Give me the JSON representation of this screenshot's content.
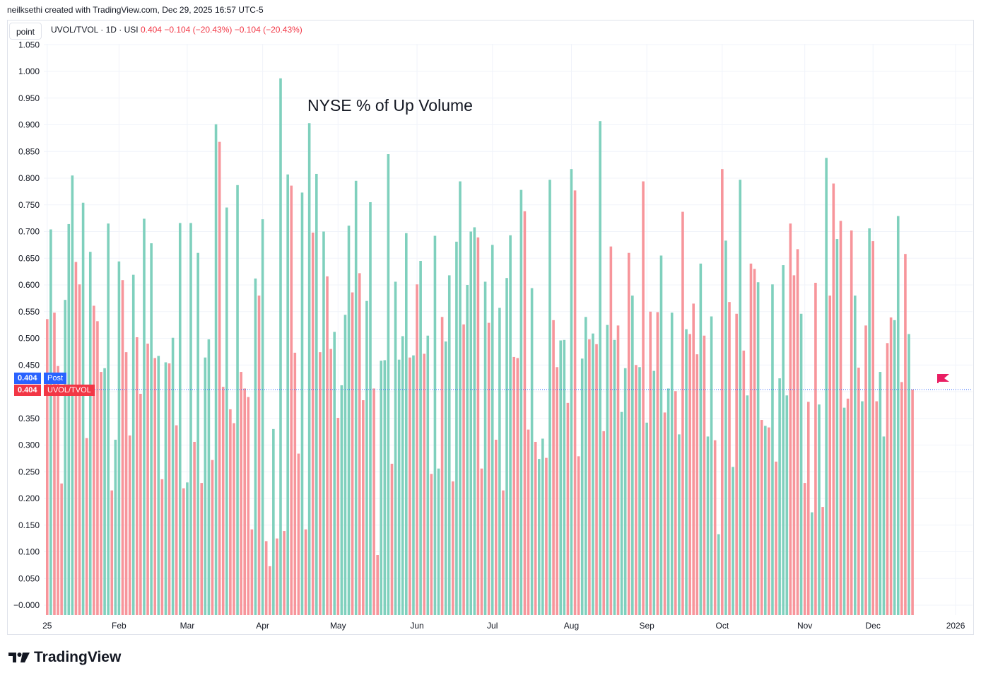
{
  "attribution": "neilksethi created with TradingView.com, Dec 29, 2025 16:57 UTC-5",
  "toolbar": {
    "point_label": "point"
  },
  "legend": {
    "symbol": "UVOL/TVOL · 1D · USI",
    "value": "0.404",
    "change1": "−0.104 (−20.43%)",
    "change2": "−0.104 (−20.43%)"
  },
  "price_tags": {
    "post_value": "0.404",
    "post_label": "Post",
    "last_value": "0.404",
    "last_label": "UVOL/TVOL"
  },
  "brand": {
    "name": "TradingView"
  },
  "colors": {
    "up": "#7fd0bd",
    "down": "#f7959b",
    "accent_blue": "#2962ff",
    "accent_red": "#f23645",
    "flag": "#e91e63"
  },
  "chart_data": {
    "type": "bar",
    "title": "NYSE % of Up Volume",
    "xlabel": "",
    "ylabel": "",
    "ylim": [
      -0.02,
      1.06
    ],
    "y_ticks": [
      "1.050",
      "1.000",
      "0.950",
      "0.900",
      "0.850",
      "0.800",
      "0.750",
      "0.700",
      "0.650",
      "0.600",
      "0.550",
      "0.500",
      "0.450",
      "0.400",
      "0.350",
      "0.300",
      "0.250",
      "0.200",
      "0.150",
      "0.100",
      "0.050",
      "−0.000"
    ],
    "x_ticks": [
      {
        "label": "25",
        "index": 0
      },
      {
        "label": "Feb",
        "index": 20
      },
      {
        "label": "Mar",
        "index": 39
      },
      {
        "label": "Apr",
        "index": 60
      },
      {
        "label": "May",
        "index": 81
      },
      {
        "label": "Jun",
        "index": 103
      },
      {
        "label": "Jul",
        "index": 124
      },
      {
        "label": "Aug",
        "index": 146
      },
      {
        "label": "Sep",
        "index": 167
      },
      {
        "label": "Oct",
        "index": 188
      },
      {
        "label": "Nov",
        "index": 211
      },
      {
        "label": "Dec",
        "index": 230
      },
      {
        "label": "2026",
        "index": 253
      }
    ],
    "grid": true,
    "last_value": 0.404,
    "series": [
      {
        "values": [
          0.536,
          0.704,
          0.548,
          0.448,
          0.228,
          0.572,
          0.714,
          0.805,
          0.643,
          0.601,
          0.754,
          0.313,
          0.662,
          0.561,
          0.532,
          0.437,
          0.444,
          0.715,
          0.215,
          0.31,
          0.644,
          0.609,
          0.474,
          0.318,
          0.619,
          0.502,
          0.396,
          0.724,
          0.49,
          0.678,
          0.463,
          0.467,
          0.236,
          0.455,
          0.453,
          0.501,
          0.337,
          0.716,
          0.219,
          0.23,
          0.716,
          0.306,
          0.66,
          0.229,
          0.464,
          0.498,
          0.272,
          0.901,
          0.868,
          0.409,
          0.745,
          0.367,
          0.341,
          0.787,
          0.437,
          0.406,
          0.39,
          0.142,
          0.612,
          0.58,
          0.723,
          0.12,
          0.073,
          0.33,
          0.125,
          0.987,
          0.139,
          0.807,
          0.786,
          0.473,
          0.284,
          0.773,
          0.142,
          0.903,
          0.698,
          0.808,
          0.474,
          0.7,
          0.616,
          0.48,
          0.512,
          0.351,
          0.412,
          0.544,
          0.711,
          0.586,
          0.795,
          0.622,
          0.384,
          0.57,
          0.755,
          0.406,
          0.094,
          0.458,
          0.459,
          0.845,
          0.265,
          0.606,
          0.46,
          0.504,
          0.697,
          0.464,
          0.468,
          0.601,
          0.645,
          0.471,
          0.505,
          0.246,
          0.692,
          0.256,
          0.54,
          0.494,
          0.618,
          0.232,
          0.681,
          0.794,
          0.526,
          0.6,
          0.7,
          0.708,
          0.689,
          0.256,
          0.606,
          0.529,
          0.675,
          0.31,
          0.557,
          0.215,
          0.613,
          0.693,
          0.465,
          0.463,
          0.778,
          0.738,
          0.329,
          0.594,
          0.306,
          0.274,
          0.312,
          0.276,
          0.797,
          0.534,
          0.446,
          0.496,
          0.497,
          0.379,
          0.817,
          0.777,
          0.279,
          0.462,
          0.54,
          0.498,
          0.509,
          0.489,
          0.907,
          0.326,
          0.525,
          0.672,
          0.497,
          0.524,
          0.362,
          0.444,
          0.66,
          0.58,
          0.45,
          0.446,
          0.794,
          0.342,
          0.55,
          0.439,
          0.549,
          0.655,
          0.361,
          0.406,
          0.548,
          0.401,
          0.32,
          0.737,
          0.517,
          0.508,
          0.565,
          0.47,
          0.64,
          0.505,
          0.316,
          0.541,
          0.309,
          0.133,
          0.817,
          0.683,
          0.568,
          0.259,
          0.546,
          0.797,
          0.477,
          0.393,
          0.64,
          0.63,
          0.605,
          0.347,
          0.336,
          0.333,
          0.601,
          0.269,
          0.425,
          0.637,
          0.393,
          0.715,
          0.618,
          0.667,
          0.546,
          0.229,
          0.381,
          0.174,
          0.604,
          0.376,
          0.184,
          0.838,
          0.58,
          0.79,
          0.686,
          0.72,
          0.37,
          0.387,
          0.702,
          0.58,
          0.445,
          0.382,
          0.524,
          0.706,
          0.682,
          0.382,
          0.437,
          0.316,
          0.491,
          0.539,
          0.534,
          0.729,
          0.418,
          0.658,
          0.508,
          0.404
        ],
        "colors": [
          "d",
          "u",
          "d",
          "d",
          "d",
          "u",
          "u",
          "u",
          "d",
          "d",
          "u",
          "d",
          "u",
          "d",
          "d",
          "d",
          "u",
          "u",
          "d",
          "u",
          "u",
          "d",
          "d",
          "d",
          "u",
          "d",
          "d",
          "u",
          "d",
          "u",
          "d",
          "u",
          "d",
          "u",
          "d",
          "u",
          "d",
          "u",
          "d",
          "u",
          "u",
          "d",
          "u",
          "d",
          "u",
          "u",
          "d",
          "u",
          "d",
          "d",
          "u",
          "d",
          "d",
          "u",
          "d",
          "d",
          "d",
          "d",
          "u",
          "d",
          "u",
          "d",
          "d",
          "u",
          "d",
          "u",
          "d",
          "u",
          "d",
          "d",
          "d",
          "u",
          "d",
          "u",
          "d",
          "u",
          "d",
          "u",
          "d",
          "d",
          "u",
          "d",
          "u",
          "u",
          "u",
          "d",
          "u",
          "d",
          "d",
          "u",
          "u",
          "d",
          "d",
          "u",
          "u",
          "u",
          "d",
          "u",
          "u",
          "u",
          "u",
          "d",
          "u",
          "d",
          "u",
          "d",
          "u",
          "d",
          "u",
          "u",
          "d",
          "u",
          "u",
          "d",
          "u",
          "u",
          "d",
          "u",
          "u",
          "u",
          "d",
          "d",
          "u",
          "d",
          "u",
          "d",
          "u",
          "d",
          "u",
          "u",
          "d",
          "d",
          "u",
          "d",
          "d",
          "u",
          "d",
          "u",
          "u",
          "d",
          "u",
          "d",
          "d",
          "u",
          "u",
          "d",
          "u",
          "d",
          "d",
          "u",
          "u",
          "d",
          "u",
          "d",
          "u",
          "d",
          "u",
          "d",
          "u",
          "d",
          "u",
          "u",
          "d",
          "u",
          "d",
          "u",
          "d",
          "u",
          "d",
          "u",
          "d",
          "u",
          "d",
          "u",
          "u",
          "d",
          "u",
          "d",
          "u",
          "d",
          "d",
          "d",
          "u",
          "d",
          "u",
          "u",
          "d",
          "u",
          "d",
          "u",
          "d",
          "u",
          "d",
          "u",
          "d",
          "u",
          "d",
          "d",
          "u",
          "d",
          "u",
          "d",
          "u",
          "d",
          "u",
          "u",
          "u",
          "d",
          "d",
          "d",
          "u",
          "d",
          "d",
          "u",
          "d",
          "u",
          "d",
          "u",
          "d",
          "d",
          "u",
          "d",
          "u",
          "d",
          "d",
          "u",
          "d",
          "u",
          "d",
          "u",
          "d",
          "d",
          "u",
          "u",
          "d",
          "d",
          "u",
          "u",
          "d",
          "d",
          "u",
          "d",
          "u",
          "u",
          "d",
          "u",
          "d",
          "u",
          "d",
          "d"
        ]
      }
    ]
  }
}
